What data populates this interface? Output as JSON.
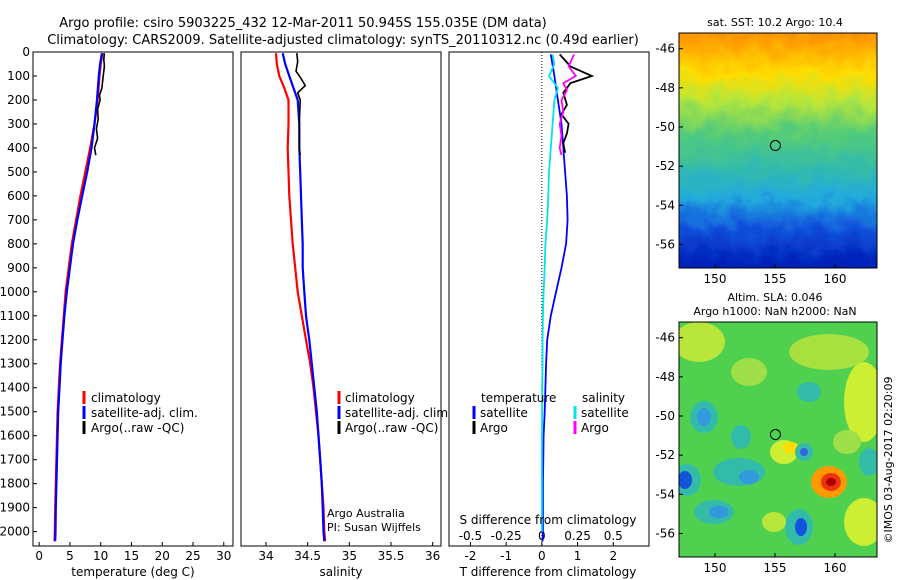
{
  "header": {
    "line1": "Argo profile: csiro 5903225_432 12-Mar-2011 50.945S 155.035E (DM data)",
    "line2": "Climatology: CARS2009. Satellite-adjusted climatology: synTS_20110312.nc (0.49d earlier)"
  },
  "colors": {
    "climatology": "#ff0000",
    "satellite": "#0000ff",
    "argo": "#000000",
    "satellite_salinity": "#00e5e5",
    "argo_salinity": "#ff00ff"
  },
  "chart_data": [
    {
      "type": "line",
      "name": "temperature",
      "xlabel": "temperature (deg C)",
      "ylabel": "",
      "xlim": [
        -1,
        31.5
      ],
      "ylim": [
        2060,
        0
      ],
      "xticks": [
        "0",
        "5",
        "10",
        "15",
        "20",
        "25",
        "30"
      ],
      "yticks": [
        "0",
        "100",
        "200",
        "300",
        "400",
        "500",
        "600",
        "700",
        "800",
        "900",
        "1000",
        "1100",
        "1200",
        "1300",
        "1400",
        "1500",
        "1600",
        "1700",
        "1800",
        "1900",
        "2000"
      ],
      "legend": {
        "placement": "lower-center",
        "entries": [
          "climatology",
          "satellite-adj. clim.",
          "Argo(..raw -QC)"
        ]
      },
      "series": [
        {
          "name": "climatology",
          "points": [
            [
              10.3,
              5
            ],
            [
              10.0,
              50
            ],
            [
              9.8,
              100
            ],
            [
              9.5,
              200
            ],
            [
              9.0,
              300
            ],
            [
              8.3,
              400
            ],
            [
              7.5,
              500
            ],
            [
              6.7,
              600
            ],
            [
              6.0,
              700
            ],
            [
              5.3,
              800
            ],
            [
              4.8,
              900
            ],
            [
              4.3,
              1000
            ],
            [
              4.0,
              1100
            ],
            [
              3.7,
              1200
            ],
            [
              3.4,
              1300
            ],
            [
              3.2,
              1400
            ],
            [
              3.0,
              1500
            ],
            [
              2.9,
              1600
            ],
            [
              2.8,
              1700
            ],
            [
              2.7,
              1800
            ],
            [
              2.6,
              1900
            ],
            [
              2.55,
              2000
            ],
            [
              2.5,
              2040
            ]
          ]
        },
        {
          "name": "satellite-adj. clim.",
          "points": [
            [
              10.2,
              5
            ],
            [
              9.9,
              50
            ],
            [
              9.7,
              100
            ],
            [
              9.4,
              200
            ],
            [
              9.0,
              300
            ],
            [
              8.5,
              400
            ],
            [
              7.8,
              500
            ],
            [
              7.0,
              600
            ],
            [
              6.2,
              700
            ],
            [
              5.5,
              800
            ],
            [
              5.0,
              900
            ],
            [
              4.5,
              1000
            ],
            [
              4.1,
              1100
            ],
            [
              3.8,
              1200
            ],
            [
              3.5,
              1300
            ],
            [
              3.3,
              1400
            ],
            [
              3.1,
              1500
            ],
            [
              3.0,
              1600
            ],
            [
              2.9,
              1700
            ],
            [
              2.8,
              1800
            ],
            [
              2.7,
              1900
            ],
            [
              2.65,
              2000
            ],
            [
              2.6,
              2040
            ]
          ]
        },
        {
          "name": "Argo(..raw -QC)",
          "points": [
            [
              10.6,
              5
            ],
            [
              10.5,
              30
            ],
            [
              10.6,
              60
            ],
            [
              10.4,
              100
            ],
            [
              10.2,
              150
            ],
            [
              9.8,
              180
            ],
            [
              9.9,
              200
            ],
            [
              9.5,
              240
            ],
            [
              9.6,
              280
            ],
            [
              9.3,
              320
            ],
            [
              9.5,
              360
            ],
            [
              9.0,
              400
            ],
            [
              9.2,
              430
            ]
          ]
        }
      ]
    },
    {
      "type": "line",
      "name": "salinity",
      "xlabel": "salinity",
      "ylabel": "",
      "xlim": [
        33.7,
        36.1
      ],
      "ylim": [
        2060,
        0
      ],
      "xticks": [
        "34",
        "34.5",
        "35",
        "35.5",
        "36"
      ],
      "legend": {
        "placement": "lower-center",
        "entries": [
          "climatology",
          "satellite-adj. clim.",
          "Argo(..raw -QC)"
        ]
      },
      "annotations": [
        "Argo Australia",
        "PI: Susan Wijffels"
      ],
      "series": [
        {
          "name": "climatology",
          "points": [
            [
              34.12,
              5
            ],
            [
              34.13,
              50
            ],
            [
              34.16,
              100
            ],
            [
              34.22,
              150
            ],
            [
              34.27,
              200
            ],
            [
              34.27,
              300
            ],
            [
              34.26,
              400
            ],
            [
              34.27,
              500
            ],
            [
              34.28,
              600
            ],
            [
              34.3,
              700
            ],
            [
              34.32,
              800
            ],
            [
              34.35,
              900
            ],
            [
              34.38,
              1000
            ],
            [
              34.43,
              1100
            ],
            [
              34.48,
              1200
            ],
            [
              34.53,
              1300
            ],
            [
              34.57,
              1400
            ],
            [
              34.6,
              1500
            ],
            [
              34.63,
              1600
            ],
            [
              34.65,
              1700
            ],
            [
              34.67,
              1800
            ],
            [
              34.69,
              1900
            ],
            [
              34.7,
              2000
            ],
            [
              34.71,
              2040
            ]
          ]
        },
        {
          "name": "satellite-adj. clim.",
          "points": [
            [
              34.2,
              5
            ],
            [
              34.23,
              50
            ],
            [
              34.28,
              100
            ],
            [
              34.33,
              150
            ],
            [
              34.38,
              200
            ],
            [
              34.4,
              300
            ],
            [
              34.4,
              400
            ],
            [
              34.41,
              500
            ],
            [
              34.42,
              600
            ],
            [
              34.43,
              700
            ],
            [
              34.44,
              800
            ],
            [
              34.44,
              900
            ],
            [
              34.46,
              1000
            ],
            [
              34.48,
              1100
            ],
            [
              34.52,
              1200
            ],
            [
              34.55,
              1300
            ],
            [
              34.58,
              1400
            ],
            [
              34.61,
              1500
            ],
            [
              34.63,
              1600
            ],
            [
              34.65,
              1700
            ],
            [
              34.67,
              1800
            ],
            [
              34.68,
              1900
            ],
            [
              34.69,
              2000
            ],
            [
              34.7,
              2040
            ]
          ]
        },
        {
          "name": "Argo(..raw -QC)",
          "points": [
            [
              34.37,
              5
            ],
            [
              34.38,
              40
            ],
            [
              34.36,
              80
            ],
            [
              34.42,
              110
            ],
            [
              34.47,
              140
            ],
            [
              34.38,
              170
            ],
            [
              34.41,
              200
            ],
            [
              34.4,
              300
            ],
            [
              34.4,
              400
            ],
            [
              34.41,
              430
            ]
          ]
        }
      ]
    },
    {
      "type": "line",
      "name": "differences",
      "xlabel": "T difference from climatology",
      "title": "S difference from climatology",
      "ylabel": "",
      "xlim": [
        -2.6,
        3.0
      ],
      "ylim": [
        2060,
        0
      ],
      "xticks": [
        "-2",
        "-1",
        "0",
        "1",
        "2"
      ],
      "xticks_salinity": [
        "-0.5",
        "-0.25",
        "0",
        "0.25",
        "0.5"
      ],
      "legend": {
        "placement": "lower-center",
        "headers": [
          "temperature",
          "salinity"
        ],
        "entries": [
          "satellite",
          "Argo",
          "satellite",
          "Argo"
        ]
      },
      "series": [
        {
          "name": "temperature satellite",
          "points": [
            [
              0.25,
              10
            ],
            [
              0.35,
              100
            ],
            [
              0.45,
              200
            ],
            [
              0.55,
              300
            ],
            [
              0.6,
              400
            ],
            [
              0.65,
              500
            ],
            [
              0.7,
              600
            ],
            [
              0.72,
              700
            ],
            [
              0.68,
              800
            ],
            [
              0.55,
              900
            ],
            [
              0.4,
              1000
            ],
            [
              0.25,
              1100
            ],
            [
              0.15,
              1200
            ],
            [
              0.12,
              1300
            ],
            [
              0.1,
              1400
            ],
            [
              0.08,
              1500
            ],
            [
              0.05,
              1600
            ],
            [
              0.04,
              1700
            ],
            [
              0.03,
              1800
            ],
            [
              0.03,
              1900
            ],
            [
              0.03,
              2000
            ],
            [
              0.02,
              2040
            ]
          ]
        },
        {
          "name": "temperature Argo",
          "points": [
            [
              0.5,
              10
            ],
            [
              0.8,
              60
            ],
            [
              1.4,
              100
            ],
            [
              0.8,
              130
            ],
            [
              0.6,
              170
            ],
            [
              0.7,
              220
            ],
            [
              0.55,
              260
            ],
            [
              0.75,
              300
            ],
            [
              0.7,
              340
            ],
            [
              0.6,
              380
            ],
            [
              0.65,
              420
            ]
          ]
        },
        {
          "name": "salinity satellite",
          "points": [
            [
              0.3,
              10
            ],
            [
              0.35,
              50
            ],
            [
              0.2,
              100
            ],
            [
              0.45,
              150
            ],
            [
              0.35,
              200
            ],
            [
              0.3,
              300
            ],
            [
              0.25,
              400
            ],
            [
              0.2,
              500
            ],
            [
              0.18,
              600
            ],
            [
              0.15,
              700
            ],
            [
              0.1,
              800
            ],
            [
              0.08,
              900
            ],
            [
              0.05,
              1000
            ],
            [
              0.03,
              1100
            ],
            [
              0.02,
              1200
            ],
            [
              0.02,
              1300
            ],
            [
              0.01,
              1400
            ],
            [
              0.01,
              1500
            ],
            [
              0.0,
              1600
            ],
            [
              0.0,
              1700
            ],
            [
              0.0,
              1800
            ],
            [
              0.0,
              1900
            ],
            [
              0.0,
              2000
            ]
          ]
        },
        {
          "name": "salinity Argo",
          "points": [
            [
              0.9,
              10
            ],
            [
              0.75,
              60
            ],
            [
              0.95,
              100
            ],
            [
              0.6,
              130
            ],
            [
              0.7,
              160
            ],
            [
              0.55,
              200
            ],
            [
              0.6,
              250
            ],
            [
              0.5,
              300
            ],
            [
              0.55,
              350
            ],
            [
              0.5,
              400
            ],
            [
              0.55,
              430
            ]
          ]
        }
      ]
    },
    {
      "type": "heatmap",
      "name": "satellite SST map",
      "title": "sat. SST: 10.2  Argo: 10.4",
      "xticks": [
        "150",
        "155",
        "160"
      ],
      "yticks": [
        "-46",
        "-48",
        "-50",
        "-52",
        "-54",
        "-56"
      ],
      "xlim": [
        147,
        163.5
      ],
      "ylim": [
        -57.2,
        -45.2
      ],
      "marker": [
        155.035,
        -50.945
      ]
    },
    {
      "type": "heatmap",
      "name": "altimetry SLA map",
      "title": "Altim. SLA: 0.046",
      "subtitle": "Argo h1000: NaN h2000: NaN",
      "xticks": [
        "150",
        "155",
        "160"
      ],
      "yticks": [
        "-46",
        "-48",
        "-50",
        "-52",
        "-54",
        "-56"
      ],
      "xlim": [
        147,
        163.5
      ],
      "ylim": [
        -57.2,
        -45.2
      ],
      "marker": [
        155.035,
        -50.945
      ]
    }
  ],
  "credit": "©IMOS 03-Aug-2017 02:20:09"
}
